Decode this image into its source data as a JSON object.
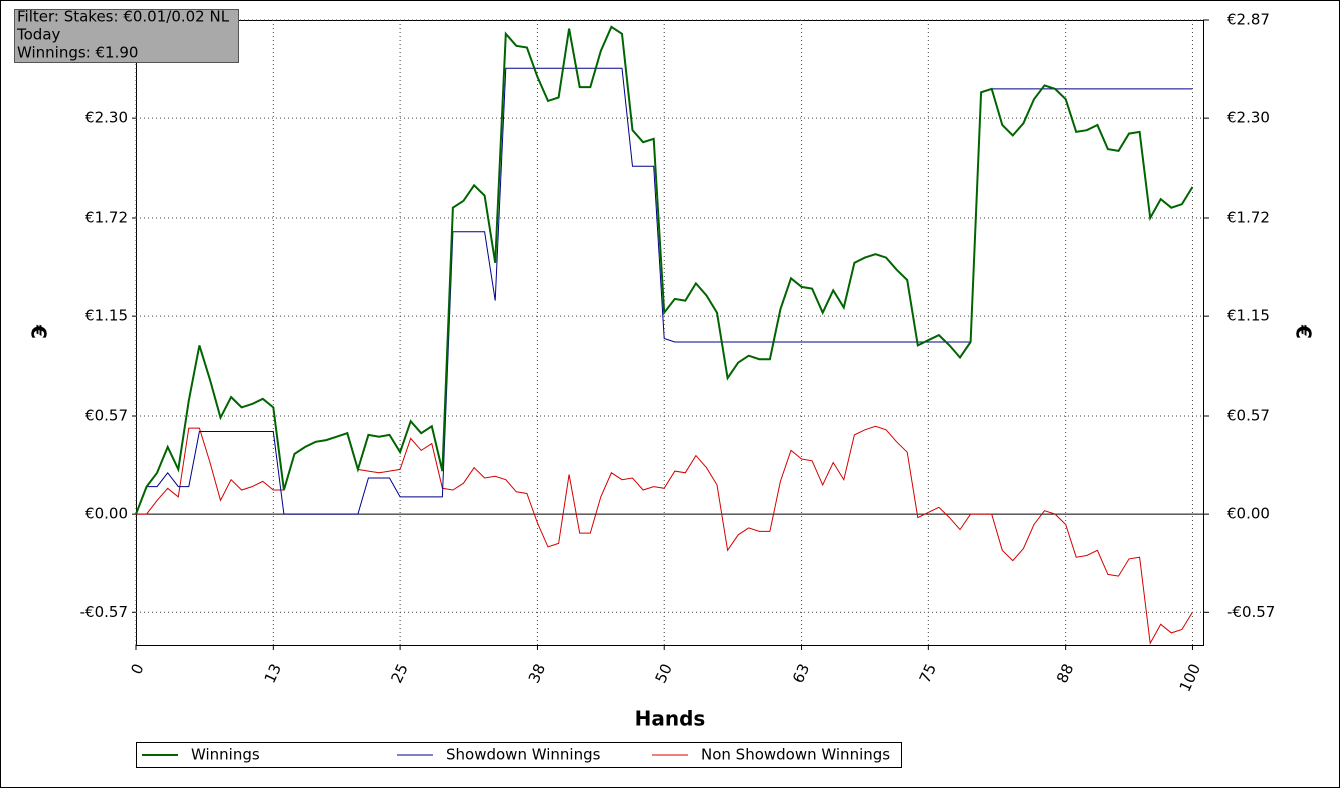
{
  "chart_data": {
    "type": "line",
    "info": [
      "Filter: Stakes: €0.01/0.02 NL",
      "Today",
      "Winnings: €1.90"
    ],
    "xlabel": "Hands",
    "ylabel": "€",
    "y2label": "€",
    "x": [
      0,
      1,
      2,
      3,
      4,
      5,
      6,
      7,
      8,
      9,
      10,
      11,
      12,
      13,
      14,
      15,
      16,
      17,
      18,
      19,
      20,
      21,
      22,
      23,
      24,
      25,
      26,
      27,
      28,
      29,
      30,
      31,
      32,
      33,
      34,
      35,
      36,
      37,
      38,
      39,
      40,
      41,
      42,
      43,
      44,
      45,
      46,
      47,
      48,
      49,
      50,
      51,
      52,
      53,
      54,
      55,
      56,
      57,
      58,
      59,
      60,
      61,
      62,
      63,
      64,
      65,
      66,
      67,
      68,
      69,
      70,
      71,
      72,
      73,
      74,
      75,
      76,
      77,
      78,
      79,
      80,
      81,
      82,
      83,
      84,
      85,
      86,
      87,
      88,
      89,
      90,
      91,
      92,
      93,
      94,
      95,
      96,
      97,
      98,
      99,
      100
    ],
    "series": [
      {
        "name": "Winnings",
        "color": "#006400",
        "values": [
          0,
          0.16,
          0.24,
          0.39,
          0.26,
          0.66,
          0.98,
          0.78,
          0.56,
          0.68,
          0.62,
          0.64,
          0.67,
          0.62,
          0.14,
          0.35,
          0.39,
          0.42,
          0.43,
          0.45,
          0.47,
          0.26,
          0.46,
          0.45,
          0.46,
          0.36,
          0.54,
          0.47,
          0.51,
          0.25,
          1.78,
          1.82,
          1.91,
          1.85,
          1.46,
          2.79,
          2.72,
          2.71,
          2.54,
          2.4,
          2.42,
          2.82,
          2.48,
          2.48,
          2.69,
          2.83,
          2.79,
          2.23,
          2.16,
          2.18,
          1.17,
          1.25,
          1.24,
          1.34,
          1.27,
          1.17,
          0.79,
          0.88,
          0.92,
          0.9,
          0.9,
          1.19,
          1.37,
          1.32,
          1.31,
          1.17,
          1.3,
          1.2,
          1.46,
          1.49,
          1.51,
          1.49,
          1.42,
          1.36,
          0.98,
          1.01,
          1.04,
          0.98,
          0.91,
          1.0,
          2.45,
          2.47,
          2.26,
          2.2,
          2.27,
          2.41,
          2.49,
          2.47,
          2.41,
          2.22,
          2.23,
          2.26,
          2.12,
          2.11,
          2.21,
          2.22,
          1.72,
          1.83,
          1.78,
          1.8,
          1.9
        ]
      },
      {
        "name": "Showdown Winnings",
        "color": "#00008b",
        "values": [
          0,
          0.16,
          0.16,
          0.24,
          0.16,
          0.16,
          0.48,
          0.48,
          0.48,
          0.48,
          0.48,
          0.48,
          0.48,
          0.48,
          0,
          0,
          0,
          0,
          0,
          0,
          0,
          0,
          0.21,
          0.21,
          0.21,
          0.1,
          0.1,
          0.1,
          0.1,
          0.1,
          1.64,
          1.64,
          1.64,
          1.64,
          1.24,
          2.59,
          2.59,
          2.59,
          2.59,
          2.59,
          2.59,
          2.59,
          2.59,
          2.59,
          2.59,
          2.59,
          2.59,
          2.02,
          2.02,
          2.02,
          1.02,
          1.0,
          1.0,
          1.0,
          1.0,
          1.0,
          1.0,
          1.0,
          1.0,
          1.0,
          1.0,
          1.0,
          1.0,
          1.0,
          1.0,
          1.0,
          1.0,
          1.0,
          1.0,
          1.0,
          1.0,
          1.0,
          1.0,
          1.0,
          1.0,
          1.0,
          1.0,
          1.0,
          1.0,
          1.0,
          2.45,
          2.47,
          2.47,
          2.47,
          2.47,
          2.47,
          2.47,
          2.47,
          2.47,
          2.47,
          2.47,
          2.47,
          2.47,
          2.47,
          2.47,
          2.47,
          2.47,
          2.47,
          2.47,
          2.47,
          2.47
        ]
      },
      {
        "name": "Non Showdown Winnings",
        "color": "#d40000",
        "values": [
          0,
          0,
          0.08,
          0.15,
          0.1,
          0.5,
          0.5,
          0.3,
          0.08,
          0.2,
          0.14,
          0.16,
          0.19,
          0.14,
          0.14,
          0.35,
          0.39,
          0.42,
          0.43,
          0.45,
          0.47,
          0.26,
          0.25,
          0.24,
          0.25,
          0.26,
          0.44,
          0.37,
          0.41,
          0.15,
          0.14,
          0.18,
          0.27,
          0.21,
          0.22,
          0.2,
          0.13,
          0.12,
          -0.05,
          -0.19,
          -0.17,
          0.23,
          -0.11,
          -0.11,
          0.1,
          0.24,
          0.2,
          0.21,
          0.14,
          0.16,
          0.15,
          0.25,
          0.24,
          0.34,
          0.27,
          0.17,
          -0.21,
          -0.12,
          -0.08,
          -0.1,
          -0.1,
          0.19,
          0.37,
          0.32,
          0.31,
          0.17,
          0.3,
          0.2,
          0.46,
          0.49,
          0.51,
          0.49,
          0.42,
          0.36,
          -0.02,
          0.01,
          0.04,
          -0.02,
          -0.09,
          0.0,
          0.0,
          0.0,
          -0.21,
          -0.27,
          -0.2,
          -0.06,
          0.02,
          0.0,
          -0.06,
          -0.25,
          -0.24,
          -0.21,
          -0.35,
          -0.36,
          -0.26,
          -0.25,
          -0.75,
          -0.64,
          -0.69,
          -0.67,
          -0.57
        ]
      }
    ],
    "xlim": [
      0,
      101
    ],
    "xticks": [
      0,
      13,
      25,
      38,
      50,
      63,
      75,
      88,
      100
    ],
    "ylim": [
      -0.76,
      2.87
    ],
    "yticks": [
      {
        "value": -0.57,
        "label": "-€0.57"
      },
      {
        "value": 0,
        "label": "€0.00"
      },
      {
        "value": 0.57,
        "label": "€0.57"
      },
      {
        "value": 1.15,
        "label": "€1.15"
      },
      {
        "value": 1.72,
        "label": "€1.72"
      },
      {
        "value": 2.3,
        "label": "€2.30"
      },
      {
        "value": 2.87,
        "label": "€2.87"
      }
    ],
    "y2lim": [
      -0.76,
      2.87
    ],
    "y2ticks": [
      {
        "value": -0.57,
        "label": "-€0.57"
      },
      {
        "value": 0,
        "label": "€0.00"
      },
      {
        "value": 0.57,
        "label": "€0.57"
      },
      {
        "value": 1.15,
        "label": "€1.15"
      },
      {
        "value": 1.72,
        "label": "€1.72"
      },
      {
        "value": 2.3,
        "label": "€2.30"
      },
      {
        "value": 2.87,
        "label": "€2.87"
      }
    ],
    "grid": true,
    "legend": "bottom"
  }
}
